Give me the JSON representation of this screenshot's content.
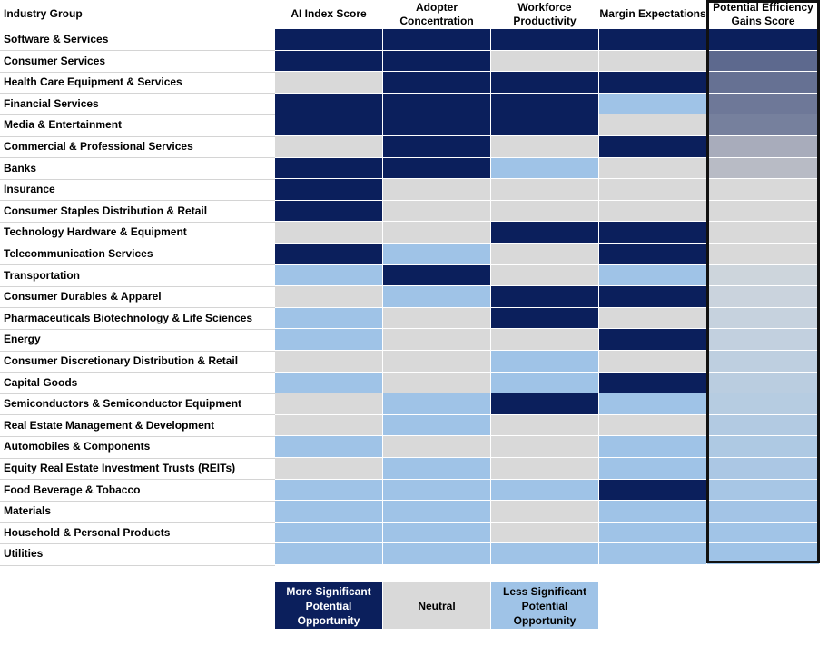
{
  "chart_data": {
    "type": "table",
    "title": "",
    "header": {
      "group": "Industry Group",
      "columns": [
        "AI Index Score",
        "Adopter Concentration",
        "Workforce Productivity",
        "Margin Expectations",
        "Potential Efficiency Gains Score"
      ]
    },
    "rows": [
      {
        "label": "Software & Services",
        "values": [
          "more",
          "more",
          "more",
          "more"
        ],
        "score": 1.0
      },
      {
        "label": "Consumer Services",
        "values": [
          "more",
          "more",
          "neutral",
          "neutral"
        ],
        "score": 0.8
      },
      {
        "label": "Health Care Equipment & Services",
        "values": [
          "neutral",
          "more",
          "more",
          "more"
        ],
        "score": 0.78
      },
      {
        "label": "Financial Services",
        "values": [
          "more",
          "more",
          "more",
          "less"
        ],
        "score": 0.76
      },
      {
        "label": "Media & Entertainment",
        "values": [
          "more",
          "more",
          "more",
          "neutral"
        ],
        "score": 0.74
      },
      {
        "label": "Commercial & Professional Services",
        "values": [
          "neutral",
          "more",
          "neutral",
          "more"
        ],
        "score": 0.62
      },
      {
        "label": "Banks",
        "values": [
          "more",
          "more",
          "less",
          "neutral"
        ],
        "score": 0.58
      },
      {
        "label": "Insurance",
        "values": [
          "more",
          "neutral",
          "neutral",
          "neutral"
        ],
        "score": 0.4
      },
      {
        "label": "Consumer Staples Distribution & Retail",
        "values": [
          "more",
          "neutral",
          "neutral",
          "neutral"
        ],
        "score": 0.36
      },
      {
        "label": "Technology Hardware & Equipment",
        "values": [
          "neutral",
          "neutral",
          "more",
          "more"
        ],
        "score": 0.34
      },
      {
        "label": "Telecommunication Services",
        "values": [
          "more",
          "less",
          "neutral",
          "more"
        ],
        "score": 0.15
      },
      {
        "label": "Transportation",
        "values": [
          "less",
          "more",
          "neutral",
          "less"
        ],
        "score": 0.12
      },
      {
        "label": "Consumer Durables & Apparel",
        "values": [
          "neutral",
          "less",
          "more",
          "more"
        ],
        "score": 0.11
      },
      {
        "label": "Pharmaceuticals Biotechnology & Life Sciences",
        "values": [
          "less",
          "neutral",
          "more",
          "neutral"
        ],
        "score": 0.1
      },
      {
        "label": "Energy",
        "values": [
          "less",
          "neutral",
          "neutral",
          "more"
        ],
        "score": 0.09
      },
      {
        "label": "Consumer Discretionary Distribution & Retail",
        "values": [
          "neutral",
          "neutral",
          "less",
          "neutral"
        ],
        "score": 0.08
      },
      {
        "label": "Capital Goods",
        "values": [
          "less",
          "neutral",
          "less",
          "more"
        ],
        "score": 0.07
      },
      {
        "label": "Semiconductors & Semiconductor Equipment",
        "values": [
          "neutral",
          "less",
          "more",
          "less"
        ],
        "score": 0.06
      },
      {
        "label": "Real Estate Management & Development",
        "values": [
          "neutral",
          "less",
          "neutral",
          "neutral"
        ],
        "score": 0.05
      },
      {
        "label": "Automobiles & Components",
        "values": [
          "less",
          "neutral",
          "neutral",
          "less"
        ],
        "score": 0.04
      },
      {
        "label": "Equity Real Estate Investment Trusts (REITs)",
        "values": [
          "neutral",
          "less",
          "neutral",
          "less"
        ],
        "score": 0.03
      },
      {
        "label": "Food Beverage & Tobacco",
        "values": [
          "less",
          "less",
          "less",
          "more"
        ],
        "score": 0.02
      },
      {
        "label": "Materials",
        "values": [
          "less",
          "less",
          "neutral",
          "less"
        ],
        "score": 0.01
      },
      {
        "label": "Household & Personal Products",
        "values": [
          "less",
          "less",
          "neutral",
          "less"
        ],
        "score": 0.005
      },
      {
        "label": "Utilities",
        "values": [
          "less",
          "less",
          "less",
          "less"
        ],
        "score": 0.0
      }
    ],
    "legend": [
      {
        "key": "more",
        "label": "More Significant Potential Opportunity"
      },
      {
        "key": "neutral",
        "label": "Neutral"
      },
      {
        "key": "less",
        "label": "Less Significant Potential Opportunity"
      }
    ],
    "colors": {
      "more": "#0b1f5c",
      "neutral": "#d9d9d9",
      "less": "#9fc3e7",
      "score_high": "#0b1f5c",
      "score_mid": "#d9d9d9",
      "score_low": "#9fc3e7",
      "legend_more_text": "#ffffff",
      "legend_text": "#000000"
    }
  }
}
